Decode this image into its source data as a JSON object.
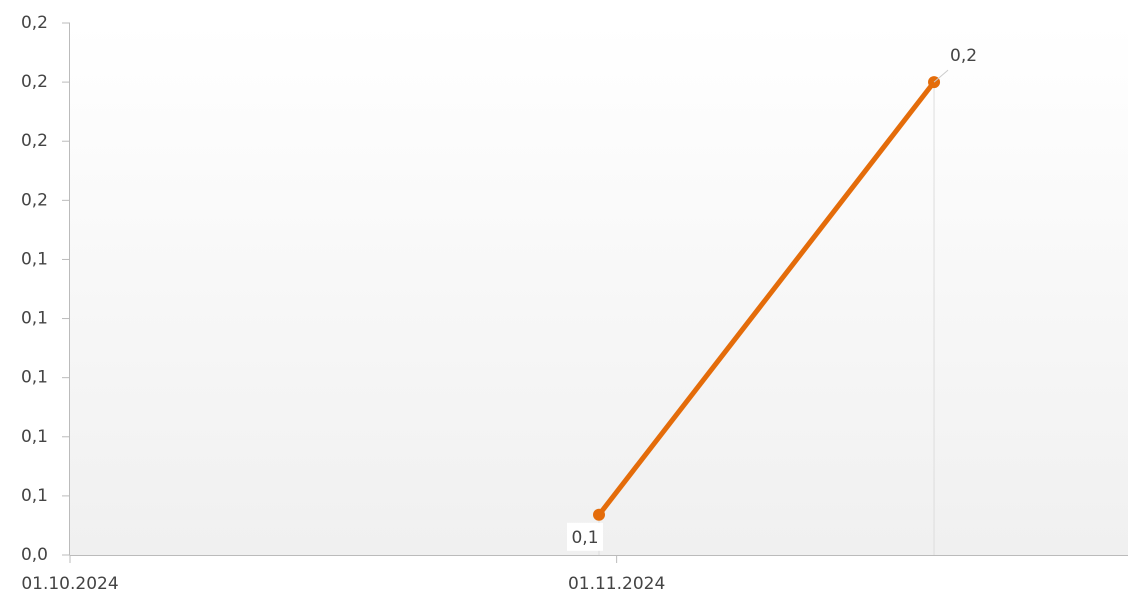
{
  "chart_data": {
    "type": "line",
    "x": [
      "2024-10-31",
      "2024-11-19"
    ],
    "series": [
      {
        "color": "#e46c0a",
        "values": [
          0.0536,
          0.2
        ],
        "value_labels": [
          "0,1",
          "0,2"
        ]
      }
    ],
    "xlim": [
      "2024-10-01",
      "2024-11-30"
    ],
    "xticks": [
      {
        "value": "2024-10-01",
        "label": "01.10.2024"
      },
      {
        "value": "2024-11-01",
        "label": "01.11.2024"
      }
    ],
    "ylim": [
      0.04,
      0.22
    ],
    "yticks": [
      {
        "value": 0.04,
        "label": "0,0"
      },
      {
        "value": 0.06,
        "label": "0,1"
      },
      {
        "value": 0.08,
        "label": "0,1"
      },
      {
        "value": 0.1,
        "label": "0,1"
      },
      {
        "value": 0.12,
        "label": "0,1"
      },
      {
        "value": 0.14,
        "label": "0,1"
      },
      {
        "value": 0.16,
        "label": "0,2"
      },
      {
        "value": 0.18,
        "label": "0,2"
      },
      {
        "value": 0.2,
        "label": "0,2"
      },
      {
        "value": 0.22,
        "label": "0,2"
      }
    ]
  }
}
